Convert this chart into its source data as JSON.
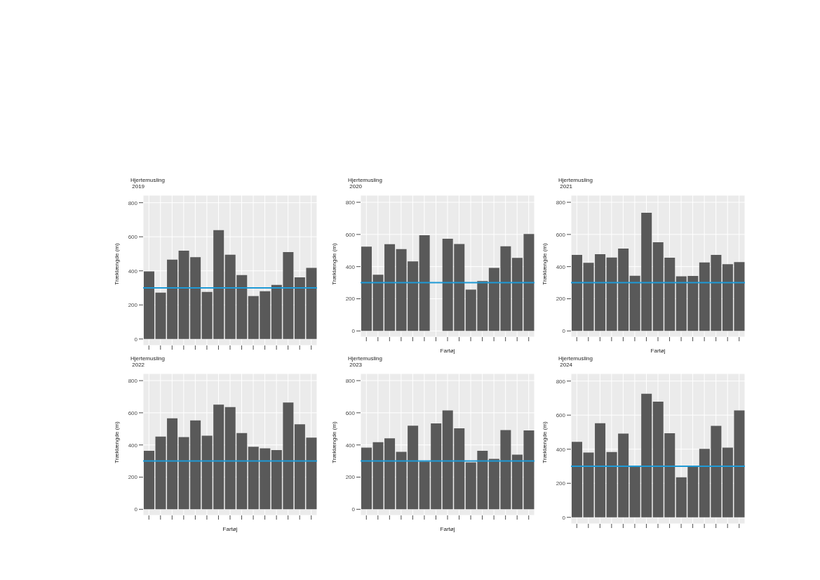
{
  "chart_data": [
    {
      "type": "bar",
      "title": "Hjertemusling",
      "subtitle": "2019",
      "ylabel": "Træklængde (m)",
      "categories": [
        null,
        null,
        null,
        null,
        null,
        null,
        null,
        null,
        null,
        null,
        null,
        null,
        null,
        null,
        null
      ],
      "values": [
        397,
        272,
        466,
        518,
        480,
        276,
        639,
        495,
        375,
        252,
        280,
        317,
        510,
        362,
        417
      ],
      "color": "#595959",
      "ylim": [
        -38,
        844
      ],
      "yticks": [
        0,
        200,
        400,
        600,
        800
      ],
      "grid": true,
      "ref_lines": [
        {
          "axis": "y",
          "value": 300,
          "color": "#1f9ad6"
        }
      ]
    },
    {
      "type": "bar",
      "title": "Hjertemusling",
      "subtitle": "2020",
      "xlabel": "Fartøj",
      "ylabel": "Træklængde (m)",
      "categories": [
        null,
        null,
        null,
        null,
        null,
        null,
        null,
        null,
        null,
        null,
        null,
        null,
        null,
        null,
        null
      ],
      "values": [
        524,
        350,
        539,
        509,
        432,
        595,
        null,
        573,
        540,
        257,
        310,
        392,
        526,
        454,
        603
      ],
      "color": "#595959",
      "ylim": [
        -38,
        844
      ],
      "yticks": [
        0,
        200,
        400,
        600,
        800
      ],
      "grid": true,
      "ref_lines": [
        {
          "axis": "y",
          "value": 300,
          "color": "#1f9ad6"
        }
      ]
    },
    {
      "type": "bar",
      "title": "Hjertemusling",
      "subtitle": "2021",
      "xlabel": "Fartøj",
      "ylabel": "Træklængde (m)",
      "categories": [
        null,
        null,
        null,
        null,
        null,
        null,
        null,
        null,
        null,
        null,
        null,
        null,
        null,
        null,
        null
      ],
      "values": [
        473,
        424,
        477,
        457,
        512,
        343,
        735,
        551,
        455,
        340,
        342,
        426,
        473,
        415,
        428
      ],
      "color": "#595959",
      "ylim": [
        -38,
        844
      ],
      "yticks": [
        0,
        200,
        400,
        600,
        800
      ],
      "grid": true,
      "ref_lines": [
        {
          "axis": "y",
          "value": 300,
          "color": "#1f9ad6"
        }
      ]
    },
    {
      "type": "bar",
      "title": "Hjertemusling",
      "subtitle": "2022",
      "xlabel": "Fartøj",
      "ylabel": "Træklængde (m)",
      "categories": [
        null,
        null,
        null,
        null,
        null,
        null,
        null,
        null,
        null,
        null,
        null,
        null,
        null,
        null,
        null
      ],
      "values": [
        364,
        452,
        566,
        449,
        553,
        458,
        651,
        636,
        474,
        389,
        379,
        368,
        664,
        528,
        446
      ],
      "color": "#595959",
      "ylim": [
        -38,
        844
      ],
      "yticks": [
        0,
        200,
        400,
        600,
        800
      ],
      "grid": true,
      "ref_lines": [
        {
          "axis": "y",
          "value": 300,
          "color": "#1f9ad6"
        }
      ]
    },
    {
      "type": "bar",
      "title": "Hjertemusling",
      "subtitle": "2023",
      "xlabel": "Fartøj",
      "ylabel": "Træklængde (m)",
      "categories": [
        null,
        null,
        null,
        null,
        null,
        null,
        null,
        null,
        null,
        null,
        null,
        null,
        null,
        null,
        null
      ],
      "values": [
        383,
        417,
        441,
        357,
        520,
        297,
        534,
        615,
        503,
        292,
        364,
        313,
        493,
        340,
        490
      ],
      "color": "#595959",
      "ylim": [
        -38,
        844
      ],
      "yticks": [
        0,
        200,
        400,
        600,
        800
      ],
      "grid": true,
      "ref_lines": [
        {
          "axis": "y",
          "value": 300,
          "color": "#1f9ad6"
        }
      ]
    },
    {
      "type": "bar",
      "title": "Hjertemusling",
      "subtitle": "2024",
      "ylabel": "Træklængde (m)",
      "categories": [
        null,
        null,
        null,
        null,
        null,
        null,
        null,
        null,
        null,
        null,
        null,
        null,
        null,
        null,
        null
      ],
      "values": [
        443,
        380,
        552,
        383,
        492,
        303,
        726,
        679,
        494,
        235,
        300,
        402,
        537,
        409,
        628
      ],
      "color": "#595959",
      "ylim": [
        -38,
        844
      ],
      "yticks": [
        0,
        200,
        400,
        600,
        800
      ],
      "grid": true,
      "ref_lines": [
        {
          "axis": "y",
          "value": 300,
          "color": "#1f9ad6"
        }
      ]
    }
  ]
}
